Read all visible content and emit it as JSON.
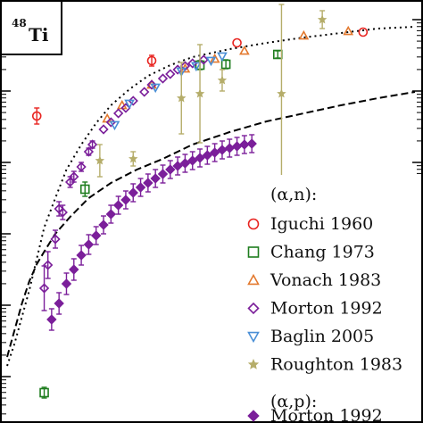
{
  "chart_data": {
    "type": "scatter",
    "title": "",
    "xlabel": "",
    "ylabel": "",
    "y_scale": "log",
    "grid": false,
    "legend_position": "bottom-right",
    "tag": {
      "superscript": "48",
      "symbol": "Ti"
    },
    "legend": {
      "group1_label": "(α,n):",
      "group2_label": "(α,p):"
    },
    "theory_curves": [
      {
        "style": "dashed",
        "color": "#000000",
        "points": [
          [
            0,
            400
          ],
          [
            0.02,
            370
          ],
          [
            0.04,
            340
          ],
          [
            0.06,
            315
          ],
          [
            0.08,
            296
          ],
          [
            0.1,
            282
          ],
          [
            0.13,
            262
          ],
          [
            0.17,
            243
          ],
          [
            0.22,
            222
          ],
          [
            0.28,
            205
          ],
          [
            0.35,
            190
          ],
          [
            0.42,
            178
          ],
          [
            0.5,
            162
          ],
          [
            0.6,
            148
          ],
          [
            0.7,
            136
          ],
          [
            0.8,
            127
          ],
          [
            0.9,
            118
          ],
          [
            1.0,
            110
          ],
          [
            1.1,
            103
          ]
        ]
      },
      {
        "style": "dotted",
        "color": "#000000",
        "points": [
          [
            0,
            410
          ],
          [
            0.02,
            385
          ],
          [
            0.04,
            355
          ],
          [
            0.06,
            325
          ],
          [
            0.08,
            290
          ],
          [
            0.1,
            255
          ],
          [
            0.13,
            222
          ],
          [
            0.16,
            190
          ],
          [
            0.2,
            162
          ],
          [
            0.24,
            138
          ],
          [
            0.28,
            118
          ],
          [
            0.33,
            100
          ],
          [
            0.38,
            85
          ],
          [
            0.44,
            73
          ],
          [
            0.5,
            64
          ],
          [
            0.6,
            55
          ],
          [
            0.7,
            48
          ],
          [
            0.8,
            42
          ],
          [
            0.9,
            37
          ],
          [
            1.0,
            32
          ],
          [
            1.1,
            30
          ]
        ]
      }
    ],
    "series": [
      {
        "name": "Iguchi 1960",
        "marker": "circle",
        "color": "#e8231f",
        "points": [
          [
            0.08,
            130
          ],
          [
            0.39,
            68
          ],
          [
            0.62,
            48
          ],
          [
            0.96,
            36
          ]
        ],
        "err": [
          9,
          6,
          0,
          0
        ]
      },
      {
        "name": "Chang 1973",
        "marker": "square",
        "color": "#1e7d1e",
        "points": [
          [
            0.1,
            440
          ],
          [
            0.21,
            212
          ],
          [
            0.52,
            73
          ],
          [
            0.59,
            72
          ],
          [
            0.73,
            61
          ]
        ],
        "err": [
          6,
          8,
          5,
          5,
          4
        ]
      },
      {
        "name": "Vonach 1983",
        "marker": "triangle",
        "color": "#e3792e",
        "points": [
          [
            0.27,
            133
          ],
          [
            0.31,
            118
          ],
          [
            0.39,
            95
          ],
          [
            0.48,
            77
          ],
          [
            0.56,
            66
          ],
          [
            0.64,
            57
          ],
          [
            0.8,
            40
          ],
          [
            0.92,
            35
          ]
        ],
        "err": [
          0,
          0,
          0,
          0,
          0,
          0,
          0,
          0
        ]
      },
      {
        "name": "Morton 1992",
        "marker": "diamond",
        "color": "#7b1f9a",
        "points": [
          [
            0.1,
            323
          ],
          [
            0.11,
            297
          ],
          [
            0.13,
            268
          ],
          [
            0.14,
            234
          ],
          [
            0.15,
            238
          ],
          [
            0.17,
            204
          ],
          [
            0.18,
            198
          ],
          [
            0.2,
            187
          ],
          [
            0.22,
            170
          ],
          [
            0.23,
            162
          ],
          [
            0.26,
            145
          ],
          [
            0.28,
            137
          ],
          [
            0.3,
            127
          ],
          [
            0.32,
            121
          ],
          [
            0.34,
            113
          ],
          [
            0.37,
            103
          ],
          [
            0.39,
            95
          ],
          [
            0.42,
            88
          ],
          [
            0.44,
            83
          ],
          [
            0.46,
            78
          ],
          [
            0.48,
            74
          ],
          [
            0.5,
            71
          ],
          [
            0.53,
            67
          ]
        ],
        "err": [
          25,
          15,
          10,
          8,
          8,
          6,
          6,
          5,
          4,
          4,
          0,
          0,
          0,
          0,
          0,
          0,
          0,
          0,
          0,
          0,
          0,
          0,
          0
        ]
      },
      {
        "name": "Baglin 2005",
        "marker": "triangle-down",
        "color": "#4a8fd6",
        "points": [
          [
            0.29,
            140
          ],
          [
            0.33,
            116
          ],
          [
            0.4,
            98
          ],
          [
            0.47,
            80
          ],
          [
            0.51,
            74
          ],
          [
            0.55,
            68
          ],
          [
            0.58,
            63
          ]
        ],
        "err": [
          0,
          0,
          0,
          0,
          0,
          0,
          0
        ]
      },
      {
        "name": "Roughton 1983",
        "marker": "star",
        "color": "#b5ad6a",
        "points": [
          [
            0.25,
            180
          ],
          [
            0.34,
            178
          ],
          [
            0.47,
            110
          ],
          [
            0.52,
            105
          ],
          [
            0.58,
            90
          ],
          [
            0.74,
            105
          ],
          [
            0.85,
            22
          ]
        ],
        "err": [
          18,
          8,
          40,
          55,
          12,
          100,
          10
        ]
      }
    ],
    "alpha_p_series": [
      {
        "name": "Morton 1992",
        "marker": "diamond-filled",
        "color": "#7b1f9a",
        "points": [
          [
            0.12,
            358
          ],
          [
            0.14,
            340
          ],
          [
            0.16,
            318
          ],
          [
            0.18,
            302
          ],
          [
            0.2,
            286
          ],
          [
            0.22,
            274
          ],
          [
            0.24,
            264
          ],
          [
            0.26,
            252
          ],
          [
            0.28,
            240
          ],
          [
            0.3,
            230
          ],
          [
            0.32,
            224
          ],
          [
            0.34,
            216
          ],
          [
            0.36,
            210
          ],
          [
            0.38,
            205
          ],
          [
            0.4,
            200
          ],
          [
            0.42,
            195
          ],
          [
            0.44,
            190
          ],
          [
            0.46,
            186
          ],
          [
            0.48,
            183
          ],
          [
            0.5,
            180
          ],
          [
            0.52,
            177
          ],
          [
            0.54,
            174
          ],
          [
            0.56,
            171
          ],
          [
            0.58,
            168
          ],
          [
            0.6,
            166
          ],
          [
            0.62,
            164
          ],
          [
            0.64,
            162
          ],
          [
            0.66,
            161
          ]
        ],
        "err": [
          12,
          12,
          12,
          12,
          11,
          11,
          10,
          10,
          10,
          10,
          10,
          10,
          10,
          10,
          10,
          10,
          10,
          10,
          10,
          10,
          10,
          10,
          10,
          10,
          10,
          10,
          10,
          10
        ]
      }
    ]
  }
}
